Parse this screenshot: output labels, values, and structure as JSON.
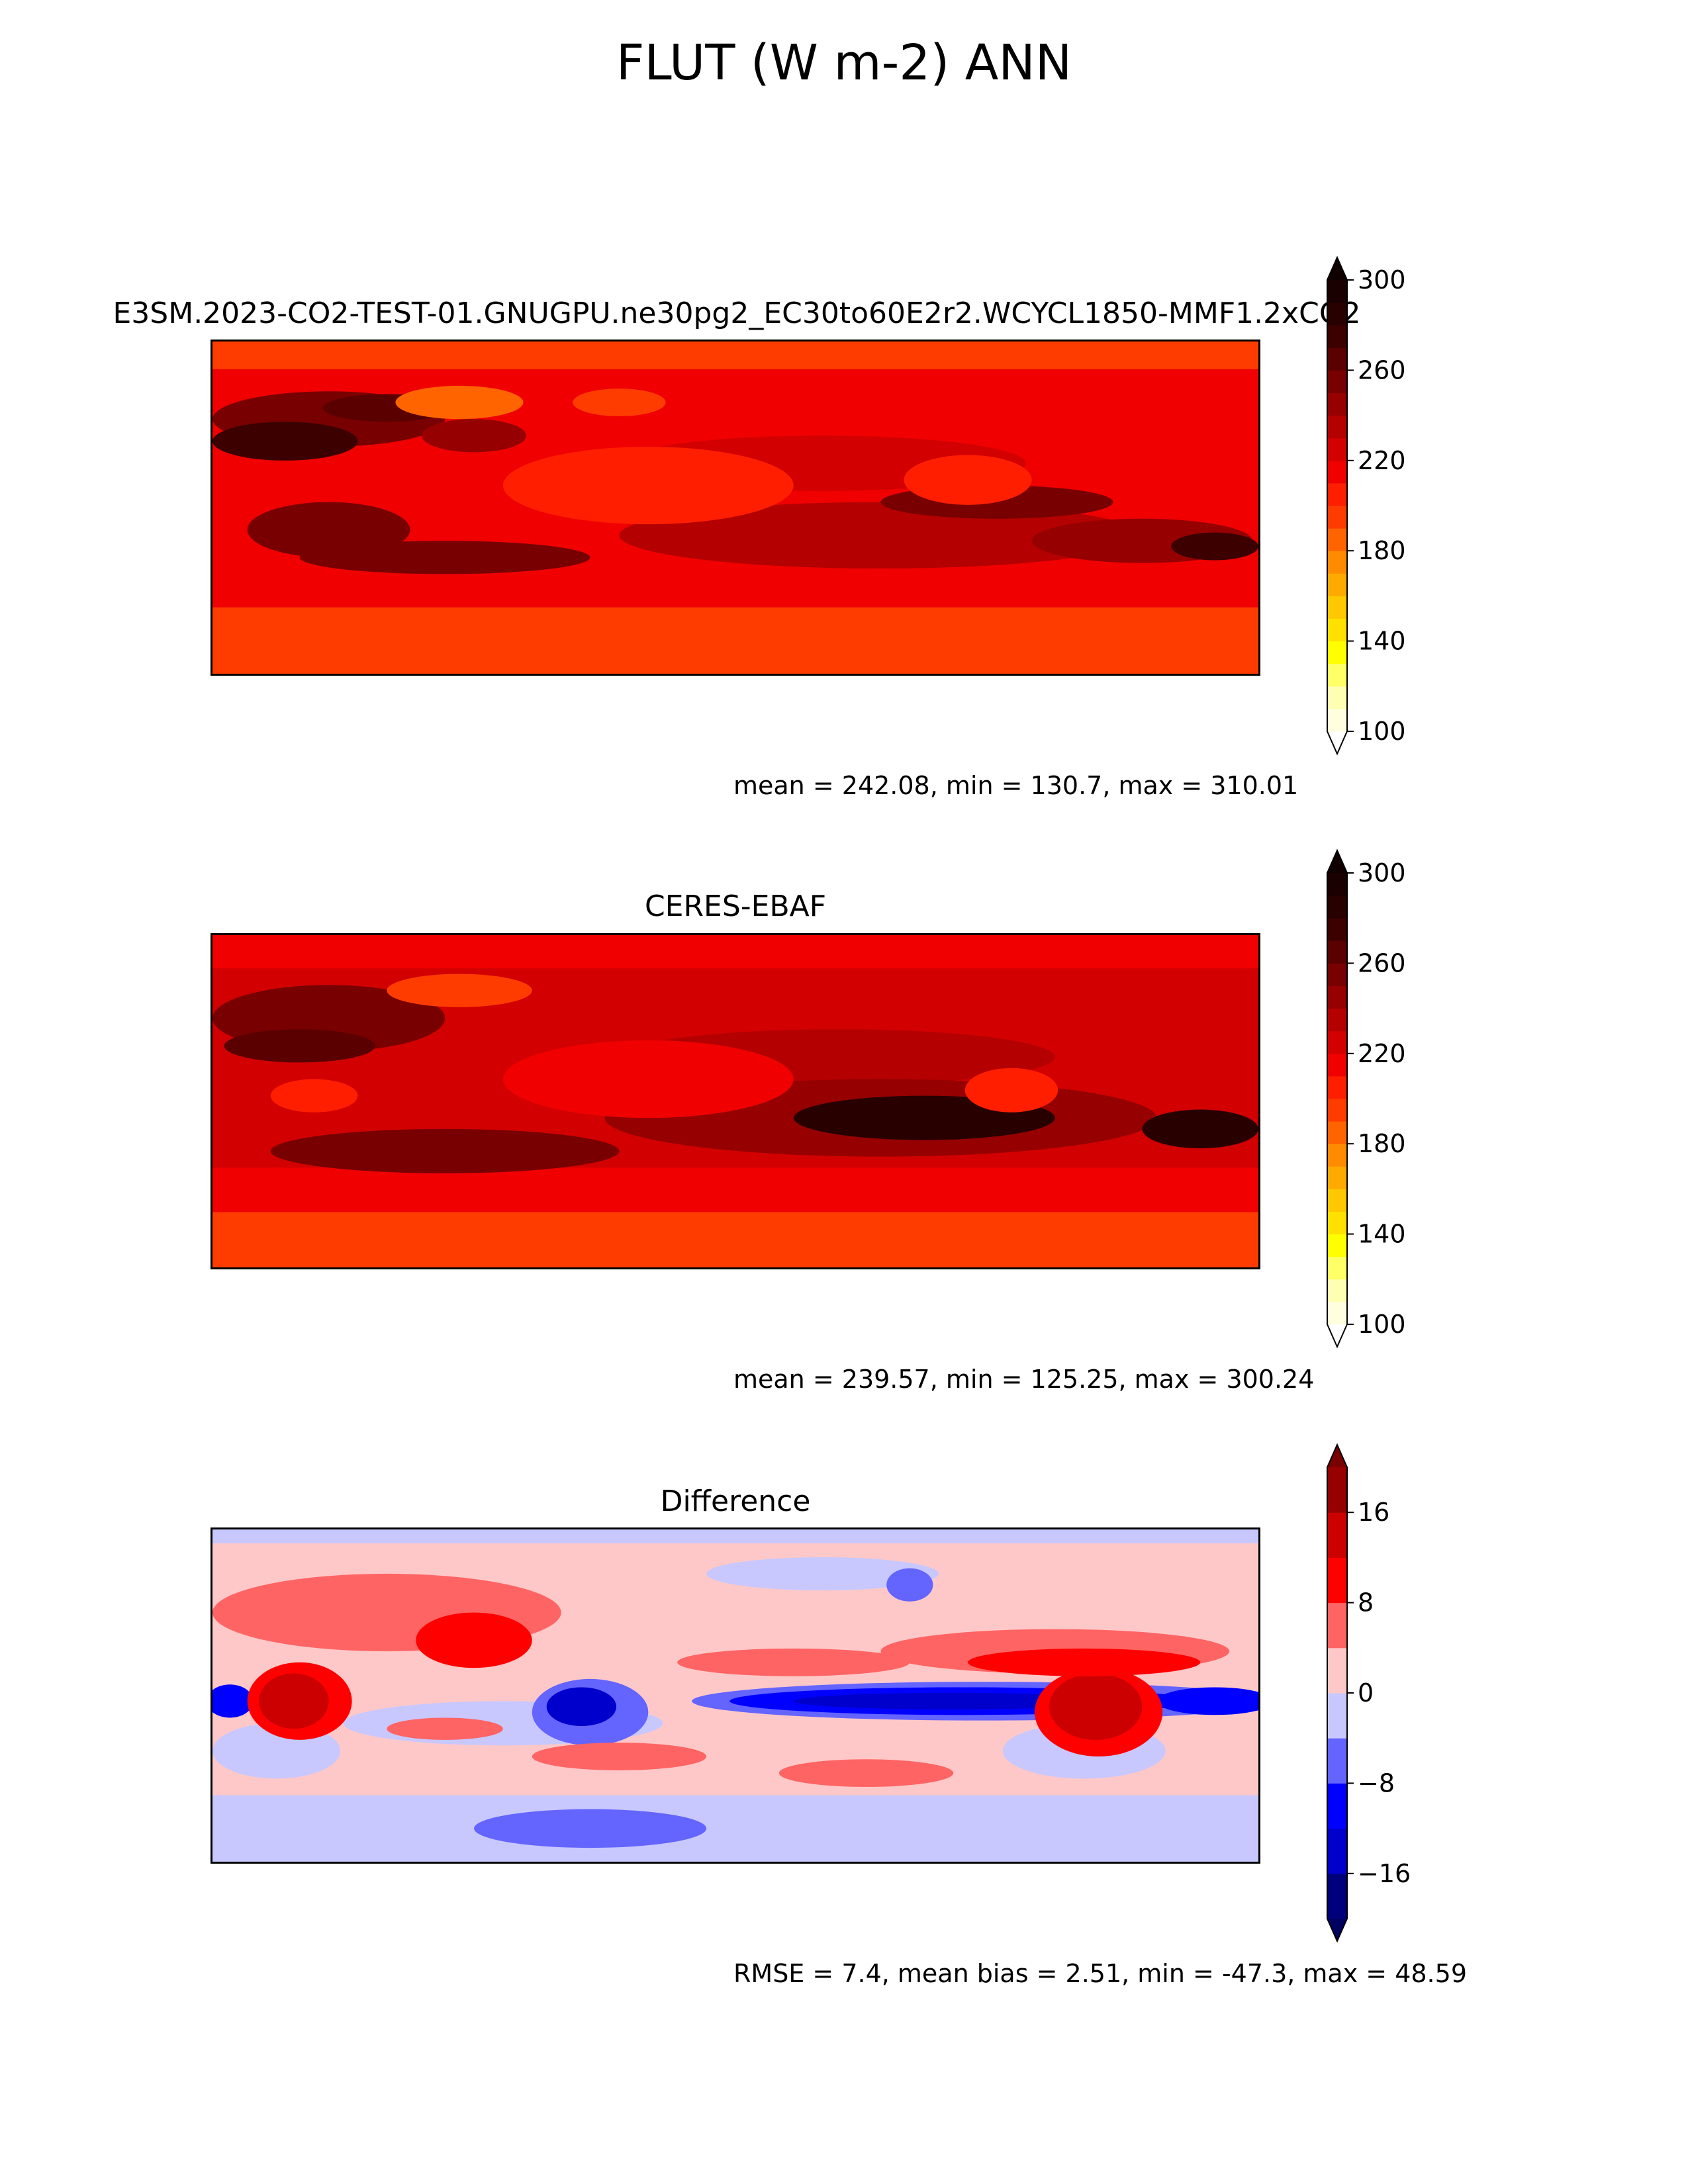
{
  "figure": {
    "title": "FLUT (W m-2) ANN"
  },
  "panels": [
    {
      "id": "test",
      "title": "E3SM.2023-CO2-TEST-01.GNUGPU.ne30pg2_EC30to60E2r2.WCYCL1850-MMF1.2xCO2",
      "stats": "mean = 242.08, min = 130.7, max = 310.01",
      "colorbar": {
        "ticks": [
          "100",
          "140",
          "180",
          "220",
          "260",
          "300"
        ],
        "levels": [
          100,
          110,
          120,
          130,
          140,
          150,
          160,
          170,
          180,
          190,
          200,
          210,
          220,
          230,
          240,
          250,
          260,
          270,
          280,
          290,
          300
        ],
        "colors": [
          "#ffffe0",
          "#ffffb3",
          "#ffff66",
          "#ffff00",
          "#ffe100",
          "#ffc800",
          "#ffaa00",
          "#ff8c00",
          "#ff6400",
          "#ff3c00",
          "#ff1e00",
          "#f00000",
          "#d20000",
          "#b40000",
          "#960000",
          "#780000",
          "#5a0000",
          "#3c0000",
          "#280000",
          "#1a0000"
        ],
        "over_color": "#100000",
        "under_color": "#ffffff"
      }
    },
    {
      "id": "reference",
      "title": "CERES-EBAF",
      "stats": "mean = 239.57, min = 125.25, max = 300.24",
      "colorbar": {
        "ticks": [
          "100",
          "140",
          "180",
          "220",
          "260",
          "300"
        ],
        "levels": [
          100,
          110,
          120,
          130,
          140,
          150,
          160,
          170,
          180,
          190,
          200,
          210,
          220,
          230,
          240,
          250,
          260,
          270,
          280,
          290,
          300
        ],
        "colors": [
          "#ffffe0",
          "#ffffb3",
          "#ffff66",
          "#ffff00",
          "#ffe100",
          "#ffc800",
          "#ffaa00",
          "#ff8c00",
          "#ff6400",
          "#ff3c00",
          "#ff1e00",
          "#f00000",
          "#d20000",
          "#b40000",
          "#960000",
          "#780000",
          "#5a0000",
          "#3c0000",
          "#280000",
          "#1a0000"
        ],
        "over_color": "#100000",
        "under_color": "#ffffff"
      }
    },
    {
      "id": "difference",
      "title": "Difference",
      "stats": "RMSE = 7.4, mean bias = 2.51, min = -47.3, max = 48.59",
      "colorbar": {
        "ticks": [
          "−16",
          "−8",
          "0",
          "8",
          "16"
        ],
        "levels": [
          -20,
          -16,
          -12,
          -8,
          -4,
          0,
          4,
          8,
          12,
          16,
          20
        ],
        "colors": [
          "#00007a",
          "#0000cc",
          "#0000ff",
          "#6464ff",
          "#c8c8ff",
          "#ffc8c8",
          "#ff6464",
          "#ff0000",
          "#cc0000",
          "#960000"
        ],
        "over_color": "#7a0000",
        "under_color": "#000060"
      }
    }
  ]
}
